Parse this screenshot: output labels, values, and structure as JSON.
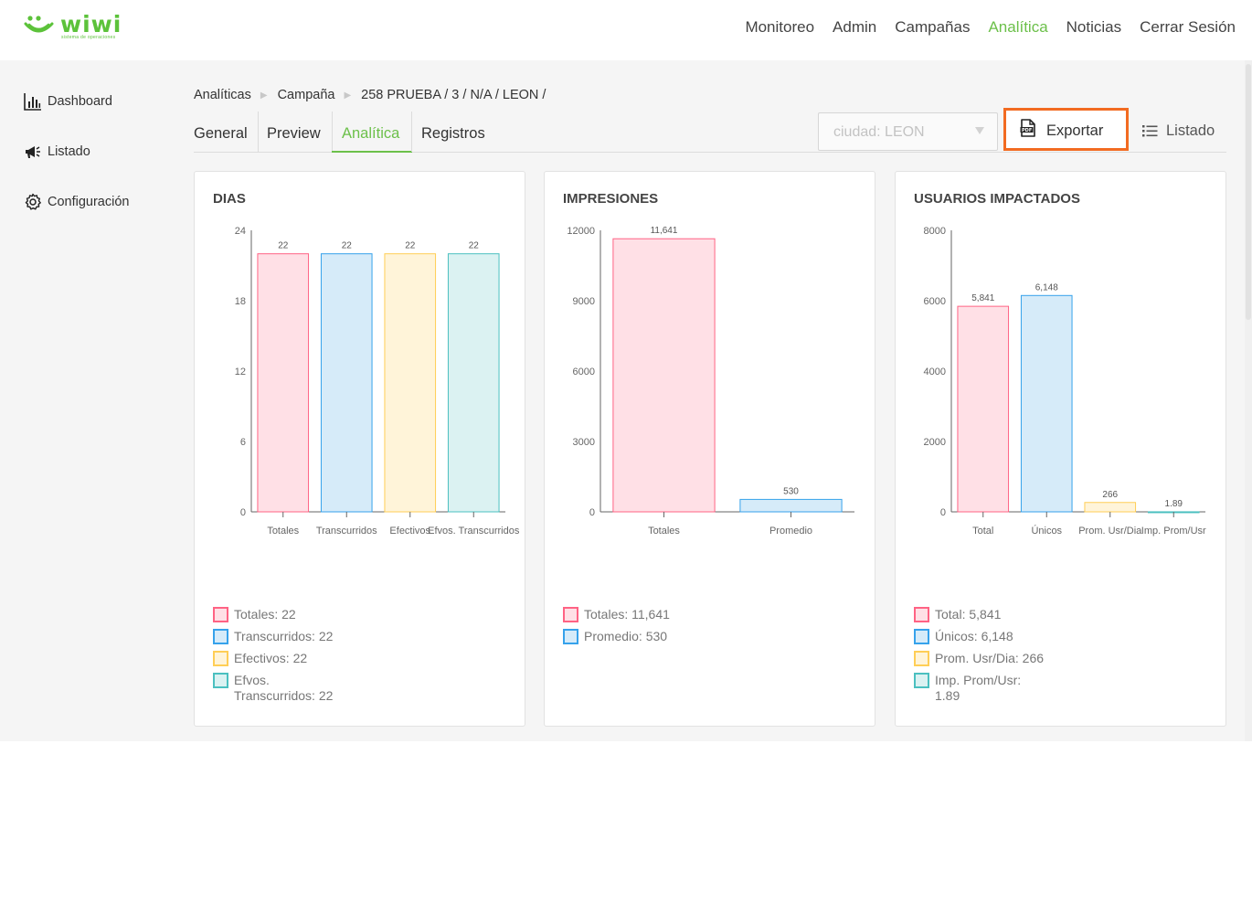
{
  "brand": {
    "name": "wiwi",
    "tagline": "sistema de operaciones"
  },
  "nav": [
    {
      "label": "Monitoreo",
      "active": false
    },
    {
      "label": "Admin",
      "active": false
    },
    {
      "label": "Campañas",
      "active": false
    },
    {
      "label": "Analítica",
      "active": true
    },
    {
      "label": "Noticias",
      "active": false
    },
    {
      "label": "Cerrar Sesión",
      "active": false
    }
  ],
  "sidebar": [
    {
      "label": "Dashboard",
      "icon": "bar-chart-icon"
    },
    {
      "label": "Listado",
      "icon": "megaphone-icon"
    },
    {
      "label": "Configuración",
      "icon": "gear-icon"
    }
  ],
  "breadcrumb": [
    "Analíticas",
    "Campaña",
    "258 PRUEBA / 3 / N/A / LEON /"
  ],
  "tabs": [
    {
      "label": "General",
      "active": false
    },
    {
      "label": "Preview",
      "active": false
    },
    {
      "label": "Analítica",
      "active": true
    },
    {
      "label": "Registros",
      "active": false
    }
  ],
  "city_select": {
    "value": "ciudad: LEON"
  },
  "actions": {
    "export_label": "Exportar",
    "list_label": "Listado"
  },
  "colors": {
    "accent": "#6cc04a",
    "export_border": "#f26b21",
    "pink_fill": "#ffe0e6",
    "pink_stroke": "#ff6384",
    "blue_fill": "#d6ebf9",
    "blue_stroke": "#36a2eb",
    "yellow_fill": "#fff4d9",
    "yellow_stroke": "#ffce56",
    "teal_fill": "#dbf2f2",
    "teal_stroke": "#4bc0c0"
  },
  "chart_data": [
    {
      "type": "bar",
      "title": "DIAS",
      "categories": [
        "Totales",
        "Transcurridos",
        "Efectivos",
        "Efvos. Transcurridos"
      ],
      "values": [
        22,
        22,
        22,
        22
      ],
      "value_labels": [
        "22",
        "22",
        "22",
        "22"
      ],
      "ylim": [
        0,
        24
      ],
      "yticks": [
        "0",
        "6",
        "12",
        "18",
        "24"
      ],
      "colors": [
        "pink",
        "blue",
        "yellow",
        "teal"
      ],
      "legend": [
        "Totales: 22",
        "Transcurridos: 22",
        "Efectivos: 22",
        "Efvos. Transcurridos: 22"
      ]
    },
    {
      "type": "bar",
      "title": "IMPRESIONES",
      "categories": [
        "Totales",
        "Promedio"
      ],
      "values": [
        11641,
        530
      ],
      "value_labels": [
        "11,641",
        "530"
      ],
      "ylim": [
        0,
        12000
      ],
      "yticks": [
        "0",
        "3000",
        "6000",
        "9000",
        "12000"
      ],
      "colors": [
        "pink",
        "blue"
      ],
      "legend": [
        "Totales: 11,641",
        "Promedio: 530"
      ]
    },
    {
      "type": "bar",
      "title": "USUARIOS IMPACTADOS",
      "categories": [
        "Total",
        "Únicos",
        "Prom. Usr/Dia",
        "Imp. Prom/Usr"
      ],
      "values": [
        5841,
        6148,
        266,
        1.89
      ],
      "value_labels": [
        "5,841",
        "6,148",
        "266",
        "1.89"
      ],
      "ylim": [
        0,
        8000
      ],
      "yticks": [
        "0",
        "2000",
        "4000",
        "6000",
        "8000"
      ],
      "colors": [
        "pink",
        "blue",
        "yellow",
        "teal"
      ],
      "legend": [
        "Total: 5,841",
        "Únicos: 6,148",
        "Prom. Usr/Dia: 266",
        "Imp. Prom/Usr: 1.89"
      ]
    }
  ]
}
